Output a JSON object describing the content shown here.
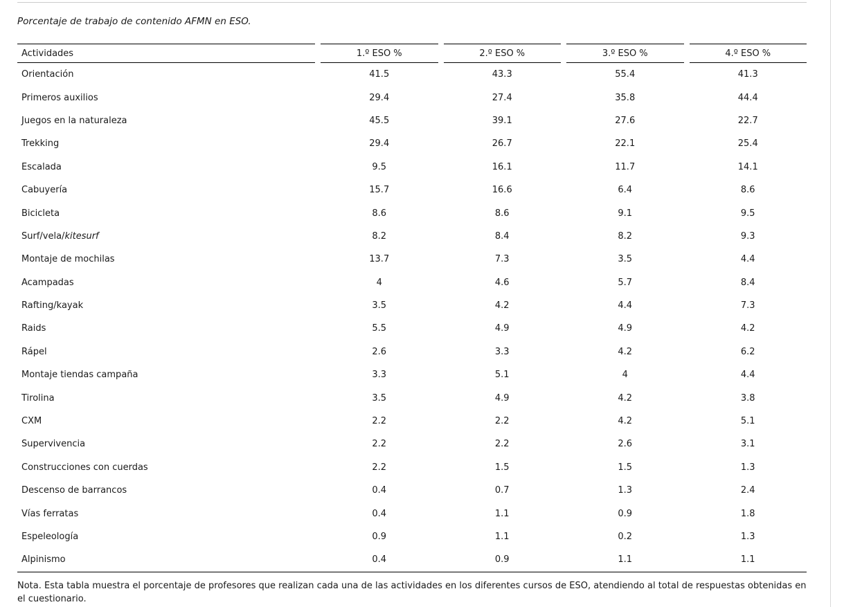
{
  "page": {
    "title": "Porcentaje de trabajo de contenido AFMN en ESO.",
    "note": "Nota. Esta tabla muestra el porcentaje de profesores que realizan cada una de las actividades en los diferentes cursos de ESO, atendiendo al total de respuestas obtenidas en el cuestionario."
  },
  "table": {
    "columns": [
      "Actividades",
      "1.º ESO %",
      "2.º ESO %",
      "3.º ESO %",
      "4.º ESO %"
    ],
    "rows": [
      {
        "activity": "Orientación",
        "values": [
          "41.5",
          "43.3",
          "55.4",
          "41.3"
        ]
      },
      {
        "activity": "Primeros auxilios",
        "values": [
          "29.4",
          "27.4",
          "35.8",
          "44.4"
        ]
      },
      {
        "activity": "Juegos en la naturaleza",
        "values": [
          "45.5",
          "39.1",
          "27.6",
          "22.7"
        ]
      },
      {
        "activity": "Trekking",
        "values": [
          "29.4",
          "26.7",
          "22.1",
          "25.4"
        ]
      },
      {
        "activity": "Escalada",
        "values": [
          "9.5",
          "16.1",
          "11.7",
          "14.1"
        ]
      },
      {
        "activity": "Cabuyería",
        "values": [
          "15.7",
          "16.6",
          "6.4",
          "8.6"
        ]
      },
      {
        "activity": "Bicicleta",
        "values": [
          "8.6",
          "8.6",
          "9.1",
          "9.5"
        ]
      },
      {
        "activity": "Surf/vela/",
        "activity_em": "kitesurf",
        "values": [
          "8.2",
          "8.4",
          "8.2",
          "9.3"
        ]
      },
      {
        "activity": "Montaje de mochilas",
        "values": [
          "13.7",
          "7.3",
          "3.5",
          "4.4"
        ]
      },
      {
        "activity": "Acampadas",
        "values": [
          "4",
          "4.6",
          "5.7",
          "8.4"
        ]
      },
      {
        "activity": "Rafting/kayak",
        "values": [
          "3.5",
          "4.2",
          "4.4",
          "7.3"
        ]
      },
      {
        "activity": "Raids",
        "values": [
          "5.5",
          "4.9",
          "4.9",
          "4.2"
        ]
      },
      {
        "activity": "Rápel",
        "values": [
          "2.6",
          "3.3",
          "4.2",
          "6.2"
        ]
      },
      {
        "activity": "Montaje tiendas campaña",
        "values": [
          "3.3",
          "5.1",
          "4",
          "4.4"
        ]
      },
      {
        "activity": "Tirolina",
        "values": [
          "3.5",
          "4.9",
          "4.2",
          "3.8"
        ]
      },
      {
        "activity": "CXM",
        "values": [
          "2.2",
          "2.2",
          "4.2",
          "5.1"
        ]
      },
      {
        "activity": "Supervivencia",
        "values": [
          "2.2",
          "2.2",
          "2.6",
          "3.1"
        ]
      },
      {
        "activity": "Construcciones con cuerdas",
        "values": [
          "2.2",
          "1.5",
          "1.5",
          "1.3"
        ]
      },
      {
        "activity": "Descenso de barrancos",
        "values": [
          "0.4",
          "0.7",
          "1.3",
          "2.4"
        ]
      },
      {
        "activity": "Vías ferratas",
        "values": [
          "0.4",
          "1.1",
          "0.9",
          "1.8"
        ]
      },
      {
        "activity": "Espeleología",
        "values": [
          "0.9",
          "1.1",
          "0.2",
          "1.3"
        ]
      },
      {
        "activity": "Alpinismo",
        "values": [
          "0.4",
          "0.9",
          "1.1",
          "1.1"
        ]
      }
    ]
  },
  "colors": {
    "text": "#1a1a1a",
    "table_border": "#000000",
    "page_rule": "#cccccc",
    "right_rule": "#d9d9d9"
  }
}
